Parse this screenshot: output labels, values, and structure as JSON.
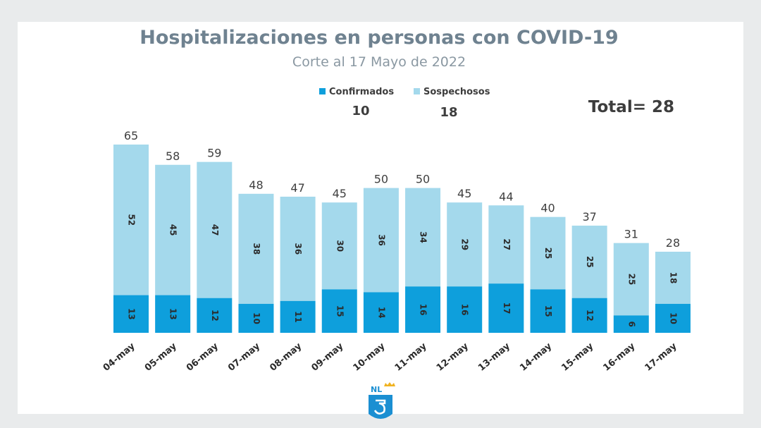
{
  "chart_data": {
    "type": "bar",
    "stacked": true,
    "title": "Hospitalizaciones en personas con COVID-19",
    "subtitle": "Corte al 17 Mayo de 2022",
    "categories": [
      "04-may",
      "05-may",
      "06-may",
      "07-may",
      "08-may",
      "09-may",
      "10-may",
      "11-may",
      "12-may",
      "13-may",
      "14-may",
      "15-may",
      "16-may",
      "17-may"
    ],
    "series": [
      {
        "name": "Confirmados",
        "color": "#0e9fdc",
        "values": [
          13,
          13,
          12,
          10,
          11,
          15,
          14,
          16,
          16,
          17,
          15,
          12,
          6,
          10
        ]
      },
      {
        "name": "Sospechosos",
        "color": "#a4d9ec",
        "values": [
          52,
          45,
          47,
          38,
          36,
          30,
          36,
          34,
          29,
          27,
          25,
          25,
          25,
          18
        ]
      }
    ],
    "totals": [
      65,
      58,
      59,
      48,
      47,
      45,
      50,
      50,
      45,
      44,
      40,
      37,
      31,
      28
    ],
    "legend": {
      "placement": "top-center",
      "items": [
        {
          "label": "Confirmados",
          "value": "10",
          "color": "#0e9fdc"
        },
        {
          "label": "Sospechosos",
          "value": "18",
          "color": "#a4d9ec"
        }
      ]
    },
    "total_label": "Total= 28",
    "ylim": [
      0,
      65
    ],
    "grid": false
  },
  "logo": {
    "text": "NL",
    "name": "nuevo-leon-logo"
  }
}
